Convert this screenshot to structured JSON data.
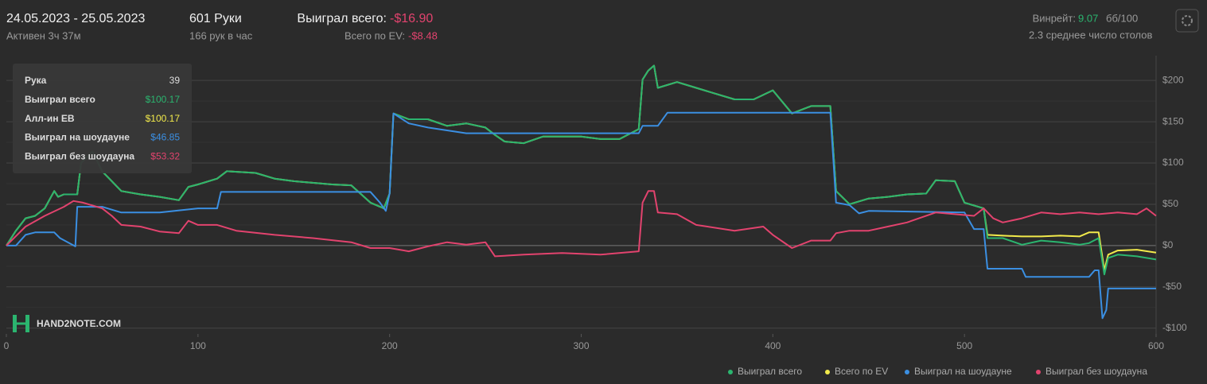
{
  "header": {
    "dates": "24.05.2023 - 25.05.2023",
    "active": "Активен 3ч 37м",
    "hands": "601 Руки",
    "rate": "166 рук в час",
    "won_label": "Выиграл всего:",
    "won_value": "-$16.90",
    "ev_label": "Всего по EV:",
    "ev_value": "-$8.48",
    "winrate_label": "Винрейт:",
    "winrate_value": "9.07",
    "winrate_unit": "бб/100",
    "tables": "2.3 среднее число столов"
  },
  "logo": "HAND2NOTE.COM",
  "tooltip": {
    "rows": [
      [
        "Рука",
        "39"
      ],
      [
        "Выиграл всего",
        "$100.17"
      ],
      [
        "Алл-ин ЕВ",
        "$100.17"
      ],
      [
        "Выиграл на шоудауне",
        "$46.85"
      ],
      [
        "Выиграл без шоудауна",
        "$53.32"
      ]
    ]
  },
  "chart_data": {
    "type": "line",
    "xlim": [
      0,
      600
    ],
    "xticks": [
      0,
      100,
      200,
      300,
      400,
      500,
      600
    ],
    "ylim": [
      -107,
      230
    ],
    "yticks": [
      {
        "value": -100,
        "label": "-$100"
      },
      {
        "value": -50,
        "label": "-$50"
      },
      {
        "value": 0,
        "label": "$0"
      },
      {
        "value": 50,
        "label": "$50"
      },
      {
        "value": 100,
        "label": "$100"
      },
      {
        "value": 150,
        "label": "$150"
      },
      {
        "value": 200,
        "label": "$200"
      }
    ],
    "grid": true,
    "series": [
      {
        "name": "Всего по EV",
        "color": "#f2ea4b",
        "x": [
          0,
          5,
          10,
          15,
          20,
          25,
          27,
          30,
          37,
          39,
          45,
          50,
          60,
          70,
          80,
          90,
          95,
          100,
          110,
          115,
          130,
          140,
          150,
          170,
          180,
          190,
          197,
          200,
          202,
          210,
          220,
          230,
          240,
          250,
          255,
          260,
          270,
          280,
          290,
          300,
          310,
          320,
          330,
          332,
          335,
          338,
          340,
          350,
          360,
          370,
          380,
          390,
          400,
          410,
          420,
          430,
          433,
          440,
          450,
          460,
          470,
          480,
          485,
          495,
          500,
          510,
          512,
          520,
          530,
          540,
          550,
          560,
          565,
          570,
          573,
          575,
          580,
          590,
          600
        ],
        "values": [
          0,
          18,
          33,
          36,
          45,
          66,
          59,
          62,
          62,
          100,
          114,
          90,
          66,
          62,
          59,
          55,
          71,
          74,
          81,
          90,
          88,
          81,
          78,
          74,
          73,
          52,
          45,
          63,
          160,
          153,
          153,
          145,
          148,
          143,
          134,
          126,
          124,
          132,
          132,
          132,
          129,
          129,
          141,
          201,
          212,
          218,
          191,
          198,
          191,
          184,
          177,
          177,
          188,
          160,
          169,
          169,
          66,
          50,
          57,
          59,
          62,
          63,
          79,
          78,
          52,
          45,
          13,
          12,
          11,
          11,
          12,
          11,
          16,
          16,
          -30,
          -11,
          -6,
          -5,
          -8.48
        ]
      },
      {
        "name": "Выиграл всего",
        "color": "#2bb56f",
        "x": [
          0,
          5,
          10,
          15,
          20,
          25,
          27,
          30,
          37,
          39,
          45,
          50,
          60,
          70,
          80,
          90,
          95,
          100,
          110,
          115,
          130,
          140,
          150,
          170,
          180,
          190,
          197,
          200,
          202,
          210,
          220,
          230,
          240,
          250,
          255,
          260,
          270,
          280,
          290,
          300,
          310,
          320,
          330,
          332,
          335,
          338,
          340,
          350,
          360,
          370,
          380,
          390,
          400,
          410,
          420,
          430,
          433,
          440,
          450,
          460,
          470,
          480,
          485,
          495,
          500,
          510,
          512,
          520,
          530,
          540,
          550,
          560,
          565,
          570,
          573,
          575,
          580,
          590,
          600
        ],
        "values": [
          0,
          18,
          33,
          36,
          45,
          66,
          59,
          62,
          62,
          100,
          114,
          90,
          66,
          62,
          59,
          55,
          71,
          74,
          81,
          90,
          88,
          81,
          78,
          74,
          73,
          52,
          45,
          63,
          160,
          153,
          153,
          145,
          148,
          143,
          134,
          126,
          124,
          132,
          132,
          132,
          129,
          129,
          141,
          201,
          212,
          218,
          191,
          198,
          191,
          184,
          177,
          177,
          188,
          160,
          169,
          169,
          66,
          50,
          57,
          59,
          62,
          63,
          79,
          78,
          52,
          45,
          9,
          9,
          1,
          6,
          4,
          1,
          3,
          9,
          -35,
          -15,
          -11,
          -13,
          -16.9
        ]
      },
      {
        "name": "Выиграл на шоудауне",
        "color": "#3b8fe2",
        "x": [
          0,
          5,
          10,
          15,
          25,
          28,
          36,
          37,
          50,
          60,
          80,
          100,
          110,
          112,
          190,
          195,
          198,
          200,
          202,
          210,
          220,
          240,
          330,
          332,
          340,
          345,
          430,
          433,
          440,
          445,
          450,
          500,
          505,
          510,
          512,
          530,
          532,
          565,
          568,
          570,
          572,
          574,
          575,
          600
        ],
        "values": [
          0,
          0,
          13,
          16,
          16,
          9,
          -1,
          47,
          47,
          40,
          40,
          45,
          45,
          65,
          65,
          52,
          42,
          63,
          160,
          148,
          143,
          136,
          136,
          145,
          145,
          161,
          161,
          52,
          49,
          39,
          42,
          40,
          20,
          20,
          -28,
          -28,
          -38,
          -38,
          -30,
          -30,
          -88,
          -78,
          -52,
          -52
        ]
      },
      {
        "name": "Выиграл без шоудауна",
        "color": "#e2436e",
        "x": [
          0,
          10,
          20,
          30,
          35,
          40,
          50,
          55,
          60,
          70,
          80,
          90,
          95,
          100,
          110,
          120,
          140,
          160,
          180,
          190,
          200,
          210,
          220,
          230,
          240,
          250,
          255,
          270,
          290,
          310,
          330,
          332,
          335,
          338,
          340,
          350,
          360,
          380,
          395,
          400,
          410,
          420,
          430,
          433,
          440,
          450,
          460,
          470,
          485,
          495,
          505,
          510,
          515,
          520,
          530,
          540,
          550,
          560,
          570,
          580,
          590,
          595,
          600
        ],
        "values": [
          0,
          23,
          36,
          47,
          54,
          52,
          45,
          36,
          25,
          23,
          17,
          15,
          30,
          25,
          25,
          18,
          13,
          9,
          4,
          -3,
          -3,
          -7,
          -1,
          4,
          1,
          4,
          -13,
          -11,
          -9,
          -11,
          -7,
          52,
          66,
          66,
          40,
          38,
          25,
          18,
          23,
          13,
          -3,
          6,
          6,
          15,
          18,
          18,
          23,
          28,
          40,
          38,
          36,
          45,
          33,
          28,
          33,
          40,
          38,
          40,
          38,
          40,
          38,
          45,
          36
        ]
      }
    ]
  }
}
